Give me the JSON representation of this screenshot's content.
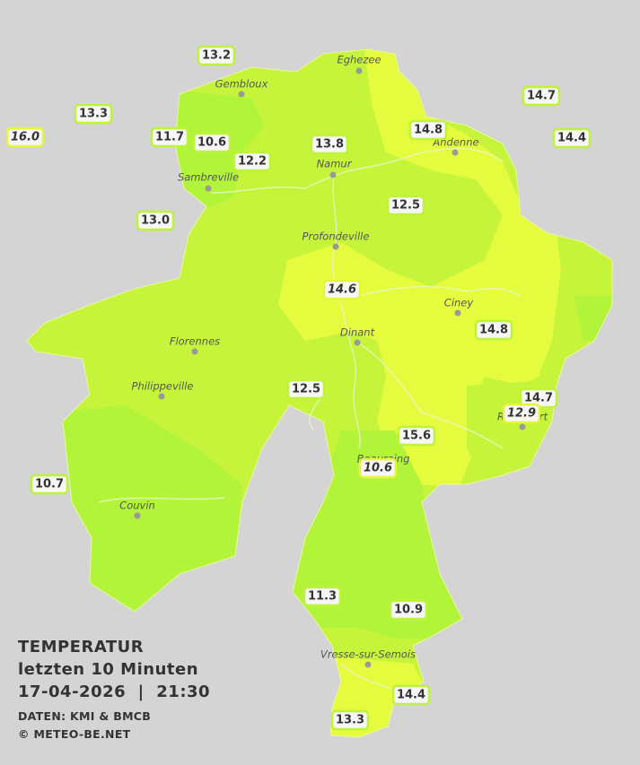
{
  "legend": {
    "title": "TEMPERATUR",
    "subtitle": "letzten 10 Minuten",
    "datetime": "17-04-2026  |  21:30",
    "source": "DATEN: KMI & BMCB",
    "copyright": "© METEO-BE.NET"
  },
  "cities": [
    {
      "name": "Eghezee"
    },
    {
      "name": "Gembloux"
    },
    {
      "name": "Andenne"
    },
    {
      "name": "Namur"
    },
    {
      "name": "Sambreville"
    },
    {
      "name": "Profondeville"
    },
    {
      "name": "Ciney"
    },
    {
      "name": "Florennes"
    },
    {
      "name": "Dinant"
    },
    {
      "name": "Philippeville"
    },
    {
      "name": "Rochefort"
    },
    {
      "name": "Beauraing"
    },
    {
      "name": "Couvin"
    },
    {
      "name": "Vresse-sur-Semois"
    }
  ],
  "stations": [
    {
      "value": "13.2"
    },
    {
      "value": "13.3"
    },
    {
      "value": "16.0"
    },
    {
      "value": "11.7"
    },
    {
      "value": "10.6"
    },
    {
      "value": "12.2"
    },
    {
      "value": "13.8"
    },
    {
      "value": "14.8"
    },
    {
      "value": "14.7"
    },
    {
      "value": "14.4"
    },
    {
      "value": "13.0"
    },
    {
      "value": "12.5"
    },
    {
      "value": "14.6"
    },
    {
      "value": "14.8"
    },
    {
      "value": "12.5"
    },
    {
      "value": "14.7"
    },
    {
      "value": "12.9"
    },
    {
      "value": "15.6"
    },
    {
      "value": "10.6"
    },
    {
      "value": "10.7"
    },
    {
      "value": "11.3"
    },
    {
      "value": "10.9"
    },
    {
      "value": "14.4"
    },
    {
      "value": "13.3"
    }
  ]
}
